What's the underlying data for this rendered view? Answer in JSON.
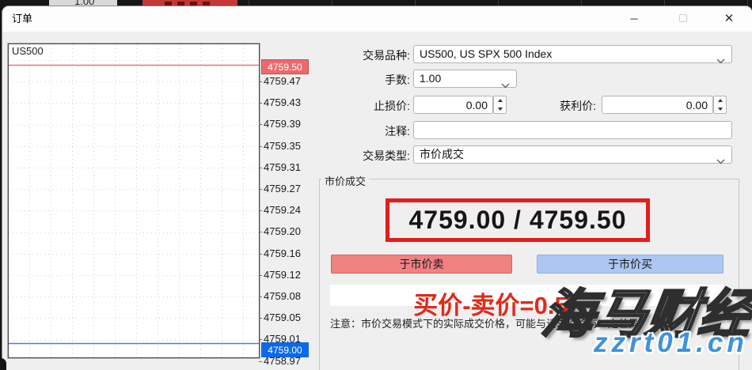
{
  "top_strip": {
    "fragment_text": "1.00"
  },
  "window": {
    "title": "订单",
    "minimize_glyph": "─",
    "close_glyph": "✕"
  },
  "chart": {
    "symbol": "US500",
    "ask_price": "4759.50",
    "bid_price": "4759.00",
    "ask_tag_color": "#ec6a6e",
    "bid_tag_color": "#0c69e8",
    "ask_line_color": "#e4757c",
    "bid_line_color": "#4e7fd0",
    "axis_labels": [
      "4759.47",
      "4759.43",
      "4759.39",
      "4759.35",
      "4759.31",
      "4759.27",
      "4759.24",
      "4759.20",
      "4759.16",
      "4759.12",
      "4759.08",
      "4759.05",
      "4759.01",
      "4758.97"
    ]
  },
  "form": {
    "symbol_label": "交易品种:",
    "symbol_value": "US500, US SPX 500 Index",
    "volume_label": "手数:",
    "volume_value": "1.00",
    "stop_loss_label": "止损价:",
    "stop_loss_value": "0.00",
    "take_profit_label": "获利价:",
    "take_profit_value": "0.00",
    "comment_label": "注释:",
    "comment_value": "",
    "type_label": "交易类型:",
    "type_value": "市价成交"
  },
  "market_execution": {
    "group_label": "市价成交",
    "quote": "4759.00 / 4759.50",
    "sell_button": "于市价卖",
    "buy_button": "于市价买",
    "sell_color": "#f28181",
    "buy_color": "#abc7f2",
    "spread_annotation": "买价-卖价=0.5",
    "annotation_color": "#e02a1a",
    "note": "注意：市价交易模式下的实际成交价格，可能与请求价格有一定差异"
  },
  "watermark": {
    "line1": "海马财经",
    "line2": "zzrt01.cn",
    "line2_color": "#3c92dd"
  }
}
